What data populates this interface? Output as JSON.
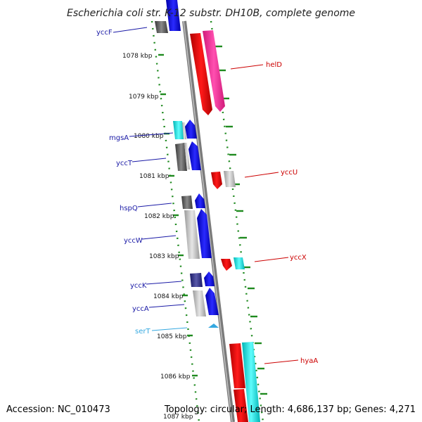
{
  "title": "Escherichia coli str. K-12 substr. DH10B, complete genome",
  "footer": {
    "accession": "Accession: NC_010473",
    "summary": "Topology: circular; Length: 4,686,137 bp; Genes: 4,271"
  },
  "kbp_labels": [
    "1078 kbp",
    "1079 kbp",
    "1080 kbp",
    "1081 kbp",
    "1082 kbp",
    "1083 kbp",
    "1084 kbp",
    "1085 kbp",
    "1086 kbp",
    "1087 kbp"
  ],
  "genes_left": [
    {
      "name": "yccF",
      "color": "#1a1aa6"
    },
    {
      "name": "mgsA",
      "color": "#1a1aa6"
    },
    {
      "name": "yccT",
      "color": "#1a1aa6"
    },
    {
      "name": "hspQ",
      "color": "#1a1aa6"
    },
    {
      "name": "yccW",
      "color": "#1a1aa6"
    },
    {
      "name": "yccK",
      "color": "#1a1aa6"
    },
    {
      "name": "yccA",
      "color": "#1a1aa6"
    },
    {
      "name": "serT",
      "color": "#35a8e0"
    }
  ],
  "genes_right": [
    {
      "name": "helD",
      "color": "#cc0000"
    },
    {
      "name": "yccU",
      "color": "#cc0000"
    },
    {
      "name": "yccX",
      "color": "#cc0000"
    },
    {
      "name": "hyaA",
      "color": "#cc0000"
    }
  ],
  "colors": {
    "backbone": "#888888",
    "dots": "#1f8a1f",
    "forward_cds": "#0000ee",
    "reverse_cds": "#ee0000",
    "pink_cds": "#ff2a9a",
    "cyan_cds": "#00e5e5",
    "gray_cds": "#c4c4c4",
    "dark_gray_cds": "#5a5a5a",
    "trna": "#35a8e0"
  }
}
